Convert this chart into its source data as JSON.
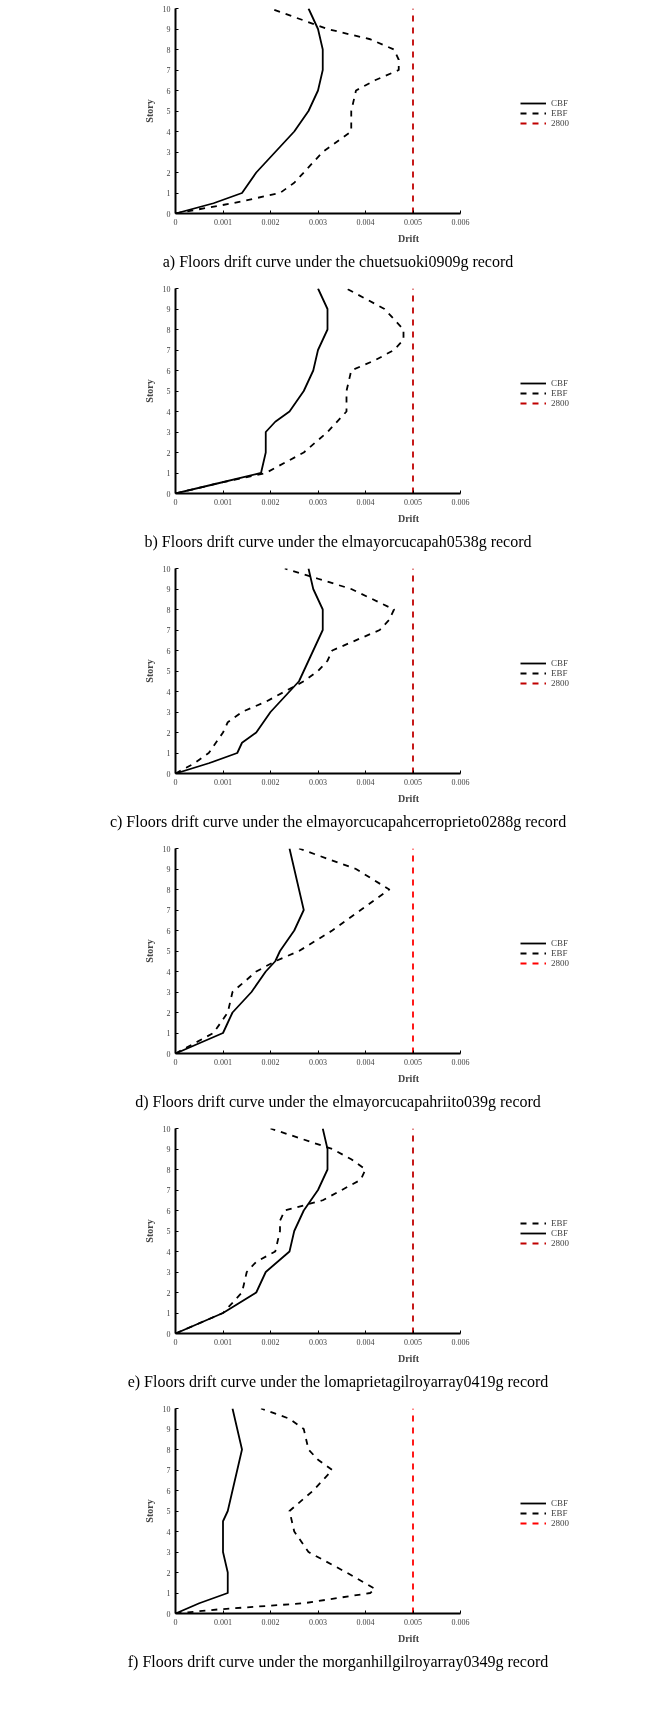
{
  "chart_data": [
    {
      "type": "line",
      "title": "a) Floors drift curve under the chuetsuoki0909g record",
      "xlabel": "Drift",
      "ylabel": "Story",
      "xlim": [
        0,
        0.006
      ],
      "xticks": [
        0,
        0.001,
        0.002,
        0.003,
        0.004,
        0.005,
        0.006
      ],
      "ylim": [
        0,
        10
      ],
      "yticks": [
        0,
        1,
        2,
        3,
        4,
        5,
        6,
        7,
        8,
        9,
        10
      ],
      "grid": false,
      "legend": "right",
      "series": [
        {
          "name": "CBF",
          "color": "#000000",
          "line_style": "solid",
          "x": [
            0,
            0.0008,
            0.0014,
            0.0017,
            0.0021,
            0.0025,
            0.0028,
            0.003,
            0.0031,
            0.0031,
            0.003,
            0.0028
          ],
          "values": [
            0,
            0.5,
            1,
            2,
            3,
            4,
            5,
            6,
            7,
            8,
            9,
            10
          ]
        },
        {
          "name": "EBF",
          "color": "#000000",
          "line_style": "dashed",
          "x": [
            0,
            0.0012,
            0.0022,
            0.0025,
            0.0027,
            0.0031,
            0.0037,
            0.0037,
            0.0038,
            0.0042,
            0.0047,
            0.0047,
            0.0046,
            0.0041,
            0.0032,
            0.002
          ],
          "values": [
            0,
            0.5,
            1,
            1.5,
            2,
            3,
            4,
            5,
            6,
            6.5,
            7,
            7.5,
            8,
            8.5,
            9,
            10
          ]
        },
        {
          "name": "2800",
          "color": "#c00000",
          "line_style": "dashed",
          "x": [
            0.005,
            0.005
          ],
          "values": [
            0,
            10
          ]
        }
      ]
    },
    {
      "type": "line",
      "title": "b) Floors drift curve under the elmayorcucapah0538g record",
      "xlabel": "Drift",
      "ylabel": "Story",
      "xlim": [
        0,
        0.006
      ],
      "xticks": [
        0,
        0.001,
        0.002,
        0.003,
        0.004,
        0.005,
        0.006
      ],
      "ylim": [
        0,
        10
      ],
      "yticks": [
        0,
        1,
        2,
        3,
        4,
        5,
        6,
        7,
        8,
        9,
        10
      ],
      "grid": false,
      "legend": "right",
      "series": [
        {
          "name": "CBF",
          "color": "#000000",
          "line_style": "solid",
          "x": [
            0,
            0.0009,
            0.0018,
            0.0019,
            0.0019,
            0.0021,
            0.0024,
            0.0027,
            0.0029,
            0.003,
            0.0032,
            0.0032,
            0.003
          ],
          "values": [
            0,
            0.5,
            1,
            2,
            3,
            3.5,
            4,
            5,
            6,
            7,
            8,
            9,
            10
          ]
        },
        {
          "name": "EBF",
          "color": "#000000",
          "line_style": "dashed",
          "x": [
            0,
            0.0009,
            0.0019,
            0.0027,
            0.0032,
            0.0036,
            0.0036,
            0.0037,
            0.0042,
            0.0046,
            0.0048,
            0.0048,
            0.0044,
            0.0036
          ],
          "values": [
            0,
            0.5,
            1,
            2,
            3,
            4,
            5,
            6,
            6.5,
            7,
            7.5,
            8,
            9,
            10
          ]
        },
        {
          "name": "2800",
          "color": "#c00000",
          "line_style": "dashed",
          "x": [
            0.005,
            0.005
          ],
          "values": [
            0,
            10
          ]
        }
      ]
    },
    {
      "type": "line",
      "title": "c) Floors drift curve under the elmayorcucapahcerroprieto0288g record",
      "xlabel": "Drift",
      "ylabel": "Story",
      "xlim": [
        0,
        0.006
      ],
      "xticks": [
        0,
        0.001,
        0.002,
        0.003,
        0.004,
        0.005,
        0.006
      ],
      "ylim": [
        0,
        10
      ],
      "yticks": [
        0,
        1,
        2,
        3,
        4,
        5,
        6,
        7,
        8,
        9,
        10
      ],
      "grid": false,
      "legend": "right",
      "series": [
        {
          "name": "CBF",
          "color": "#000000",
          "line_style": "solid",
          "x": [
            0,
            0.0007,
            0.0013,
            0.0014,
            0.0017,
            0.002,
            0.0024,
            0.0026,
            0.0027,
            0.0029,
            0.0031,
            0.0031,
            0.0029,
            0.0028
          ],
          "values": [
            0,
            0.5,
            1,
            1.5,
            2,
            3,
            4,
            4.5,
            5,
            6,
            7,
            8,
            9,
            10
          ]
        },
        {
          "name": "EBF",
          "color": "#000000",
          "line_style": "dashed",
          "x": [
            0,
            0.0004,
            0.0007,
            0.001,
            0.0011,
            0.0014,
            0.0019,
            0.0023,
            0.0027,
            0.003,
            0.0032,
            0.0033,
            0.0043,
            0.0045,
            0.0046,
            0.0037,
            0.003,
            0.0023
          ],
          "values": [
            0,
            0.5,
            1,
            2,
            2.5,
            3,
            3.5,
            4,
            4.5,
            5,
            5.5,
            6,
            7,
            7.5,
            8,
            9,
            9.5,
            10
          ]
        },
        {
          "name": "2800",
          "color": "#c00000",
          "line_style": "dashed",
          "x": [
            0.005,
            0.005
          ],
          "values": [
            0,
            10
          ]
        }
      ]
    },
    {
      "type": "line",
      "title": "d) Floors drift curve under the elmayorcucapahriito039g record",
      "xlabel": "Drift",
      "ylabel": "Story",
      "xlim": [
        0,
        0.006
      ],
      "xticks": [
        0,
        0.001,
        0.002,
        0.003,
        0.004,
        0.005,
        0.006
      ],
      "ylim": [
        0,
        10
      ],
      "yticks": [
        0,
        1,
        2,
        3,
        4,
        5,
        6,
        7,
        8,
        9,
        10
      ],
      "grid": false,
      "legend": "right",
      "series": [
        {
          "name": "CBF",
          "color": "#000000",
          "line_style": "solid",
          "x": [
            0,
            0.0005,
            0.001,
            0.0011,
            0.0012,
            0.0016,
            0.0019,
            0.0021,
            0.0022,
            0.0025,
            0.0027,
            0.0026,
            0.0025,
            0.0024
          ],
          "values": [
            0,
            0.5,
            1,
            1.5,
            2,
            3,
            4,
            4.5,
            5,
            6,
            7,
            8,
            9,
            10
          ]
        },
        {
          "name": "EBF",
          "color": "#000000",
          "line_style": "dashed",
          "x": [
            0,
            0.0004,
            0.0008,
            0.0011,
            0.0012,
            0.0017,
            0.0021,
            0.0026,
            0.0033,
            0.0039,
            0.0045,
            0.0038,
            0.0026
          ],
          "values": [
            0,
            0.5,
            1,
            2,
            3,
            4,
            4.5,
            5,
            6,
            7,
            8,
            9,
            10
          ]
        },
        {
          "name": "2800",
          "color": "#ff0000",
          "line_style": "dashed",
          "x": [
            0.005,
            0.005
          ],
          "values": [
            0,
            10
          ]
        }
      ]
    },
    {
      "type": "line",
      "title": "e) Floors drift curve under the lomaprietagilroyarray0419g record",
      "xlabel": "Drift",
      "ylabel": "Story",
      "xlim": [
        0,
        0.006
      ],
      "xticks": [
        0,
        0.001,
        0.002,
        0.003,
        0.004,
        0.005,
        0.006
      ],
      "ylim": [
        0,
        10
      ],
      "yticks": [
        0,
        1,
        2,
        3,
        4,
        5,
        6,
        7,
        8,
        9,
        10
      ],
      "grid": false,
      "legend": "right",
      "series": [
        {
          "name": "EBF",
          "color": "#000000",
          "line_style": "dashed",
          "x": [
            0,
            0.001,
            0.0014,
            0.0015,
            0.0017,
            0.0021,
            0.0022,
            0.0022,
            0.0023,
            0.0031,
            0.0035,
            0.0039,
            0.004,
            0.0037,
            0.0033,
            0.002
          ],
          "values": [
            0,
            1,
            2,
            3,
            3.5,
            4,
            5,
            5.5,
            6,
            6.5,
            7,
            7.5,
            8,
            8.5,
            9,
            10
          ]
        },
        {
          "name": "CBF",
          "color": "#000000",
          "line_style": "solid",
          "x": [
            0,
            0.001,
            0.0017,
            0.0019,
            0.0024,
            0.0025,
            0.0026,
            0.0027,
            0.003,
            0.0032,
            0.0032,
            0.0031
          ],
          "values": [
            0,
            1,
            2,
            3,
            4,
            5,
            5.5,
            6,
            7,
            8,
            9,
            10
          ]
        },
        {
          "name": "2800",
          "color": "#c00000",
          "line_style": "dashed",
          "x": [
            0.005,
            0.005
          ],
          "values": [
            0,
            10
          ]
        }
      ]
    },
    {
      "type": "line",
      "title": "f) Floors drift curve under the morganhillgilroyarray0349g record",
      "xlabel": "Drift",
      "ylabel": "Story",
      "xlim": [
        0,
        0.006
      ],
      "xticks": [
        0,
        0.001,
        0.002,
        0.003,
        0.004,
        0.005,
        0.006
      ],
      "ylim": [
        0,
        10
      ],
      "yticks": [
        0,
        1,
        2,
        3,
        4,
        5,
        6,
        7,
        8,
        9,
        10
      ],
      "grid": false,
      "legend": "right",
      "series": [
        {
          "name": "CBF",
          "color": "#000000",
          "line_style": "solid",
          "x": [
            0,
            0.0005,
            0.0011,
            0.0011,
            0.0011,
            0.001,
            0.001,
            0.001,
            0.0011,
            0.0012,
            0.0013,
            0.0014,
            0.0013,
            0.0012
          ],
          "values": [
            0,
            0.5,
            1,
            1.5,
            2,
            3,
            4,
            4.5,
            5,
            6,
            7,
            8,
            9,
            10
          ]
        },
        {
          "name": "EBF",
          "color": "#000000",
          "line_style": "dashed",
          "x": [
            0,
            0.0009,
            0.0027,
            0.0041,
            0.0042,
            0.0036,
            0.0028,
            0.0025,
            0.0024,
            0.0029,
            0.0033,
            0.003,
            0.0028,
            0.0027,
            0.0024,
            0.0018
          ],
          "values": [
            0,
            0.2,
            0.5,
            1,
            1.2,
            2,
            3,
            4,
            5,
            6,
            7,
            7.5,
            8,
            9,
            9.5,
            10
          ]
        },
        {
          "name": "2800",
          "color": "#ff0000",
          "line_style": "dashed",
          "x": [
            0.005,
            0.005
          ],
          "values": [
            0,
            10
          ]
        }
      ]
    }
  ]
}
